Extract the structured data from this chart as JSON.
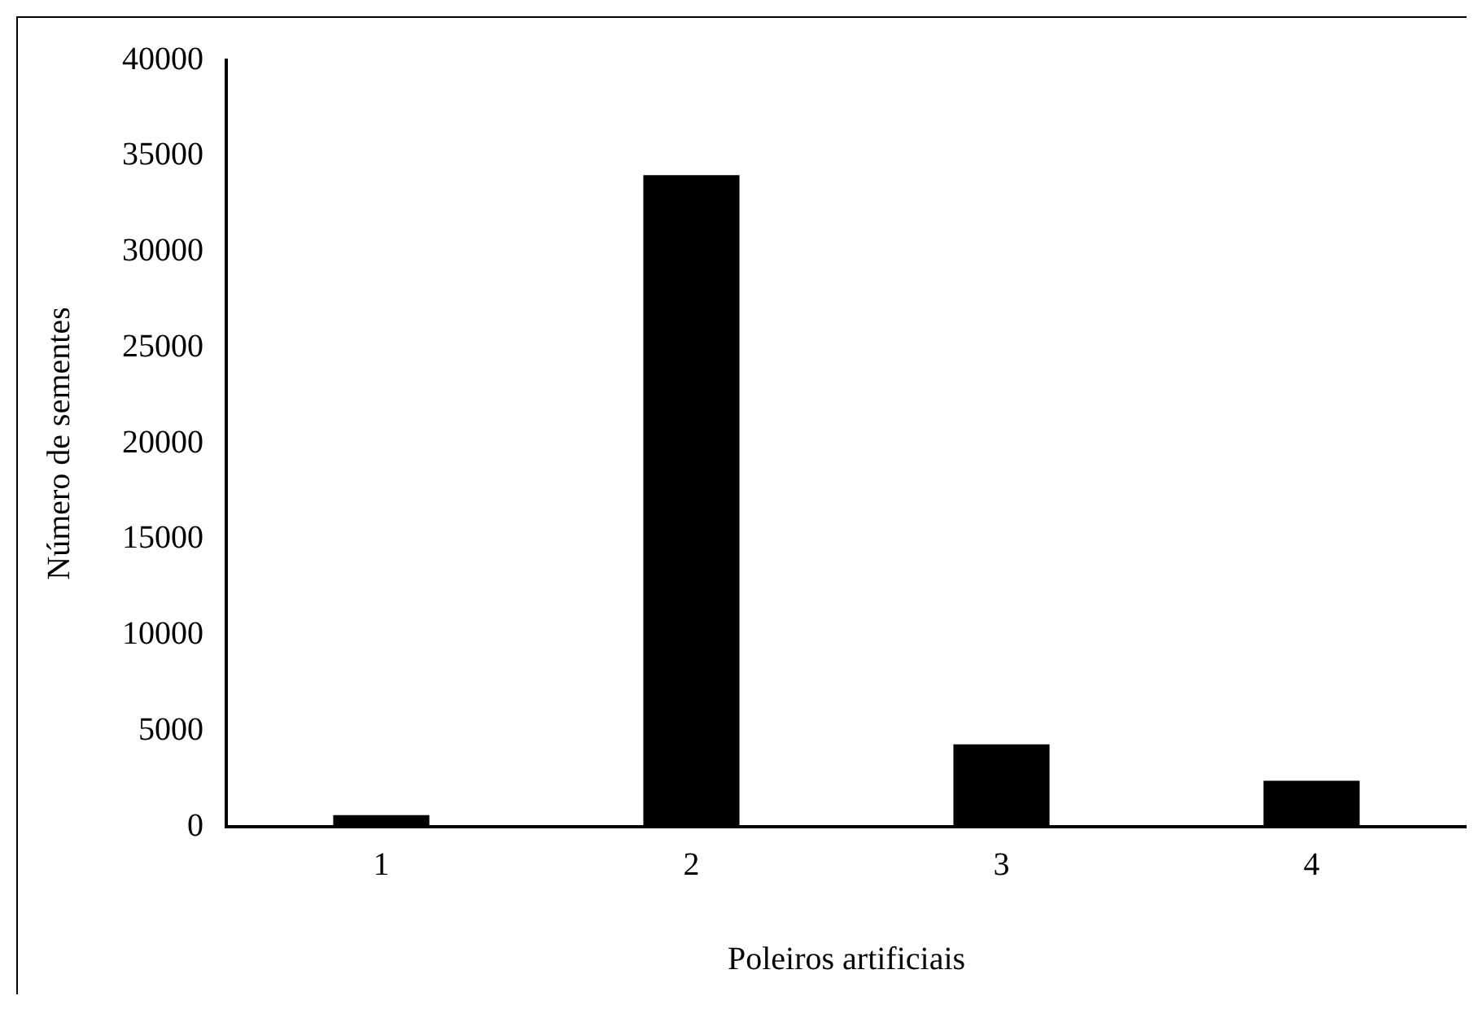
{
  "chart_data": {
    "type": "bar",
    "xlabel": "Poleiros artificiais",
    "ylabel": "Número de sementes",
    "categories": [
      "1",
      "2",
      "3",
      "4"
    ],
    "values": [
      600,
      34000,
      4300,
      2400
    ],
    "color": "#000000",
    "ylim": [
      0,
      40000
    ],
    "yticks": [
      0,
      5000,
      10000,
      15000,
      20000,
      25000,
      30000,
      35000,
      40000
    ],
    "grid": false,
    "legend": false
  }
}
